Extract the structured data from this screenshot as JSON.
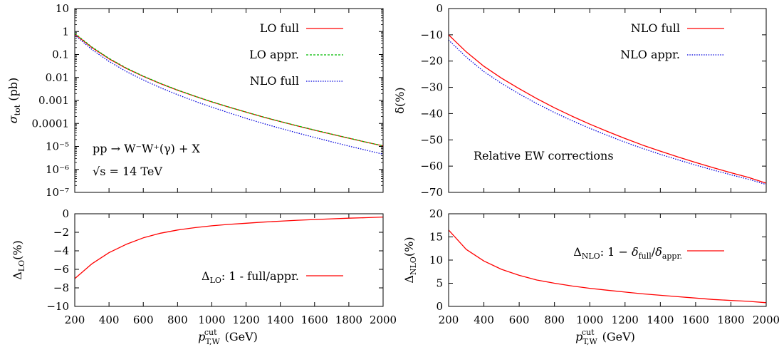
{
  "chart_data": [
    {
      "type": "line",
      "panel": "top-left",
      "y_scale": "log",
      "ylabel": "σ_tot (pb)",
      "xlim": [
        200,
        2000
      ],
      "ylim": [
        1e-07,
        10
      ],
      "grid": false,
      "legend_position": "top-right",
      "y_tick_labels": [
        "10",
        "1",
        "0.1",
        "0.01",
        "0.001",
        "0.0001",
        "10⁻⁵",
        "10⁻⁶",
        "10⁻⁷"
      ],
      "y_tick_values": [
        10,
        1,
        0.1,
        0.01,
        0.001,
        0.0001,
        1e-05,
        1e-06,
        1e-07
      ],
      "annotations": [
        "pp → W⁻W⁺(γ) + X",
        "√s = 14 TeV"
      ],
      "x": [
        200,
        300,
        400,
        500,
        600,
        700,
        800,
        900,
        1000,
        1100,
        1200,
        1300,
        1400,
        1500,
        1600,
        1700,
        1800,
        1900,
        2000
      ],
      "series": [
        {
          "name": "LO full",
          "color": "#ff0000",
          "style": "solid",
          "values": [
            0.78,
            0.2,
            0.065,
            0.025,
            0.0112,
            0.0054,
            0.0028,
            0.00153,
            0.00087,
            0.00051,
            0.00031,
            0.00019,
            0.000121,
            7.8e-05,
            5.1e-05,
            3.4e-05,
            2.28e-05,
            1.54e-05,
            1.05e-05
          ]
        },
        {
          "name": "LO appr.",
          "color": "#00bb00",
          "style": "dashed",
          "values": [
            0.84,
            0.211,
            0.068,
            0.0259,
            0.0115,
            0.00555,
            0.00286,
            0.00156,
            0.00088,
            0.00052,
            0.000313,
            0.000192,
            0.000122,
            7.9e-05,
            5.15e-05,
            3.43e-05,
            2.3e-05,
            1.55e-05,
            1.06e-05
          ]
        },
        {
          "name": "NLO full",
          "color": "#0000dd",
          "style": "dotted",
          "values": [
            0.7,
            0.165,
            0.05,
            0.0183,
            0.0078,
            0.0036,
            0.00178,
            0.00093,
            0.00051,
            0.00029,
            0.000167,
            0.0001,
            6.15e-05,
            3.85e-05,
            2.45e-05,
            1.59e-05,
            1.04e-05,
            6.9e-06,
            4.6e-06
          ]
        }
      ]
    },
    {
      "type": "line",
      "panel": "top-right",
      "ylabel": "δ(%)",
      "xlim": [
        200,
        2000
      ],
      "ylim": [
        -70,
        0
      ],
      "grid": false,
      "legend_position": "top-right",
      "y_tick_labels": [
        "0",
        "−10",
        "−20",
        "−30",
        "−40",
        "−50",
        "−60",
        "−70"
      ],
      "y_tick_values": [
        0,
        -10,
        -20,
        -30,
        -40,
        -50,
        -60,
        -70
      ],
      "annotations": [
        "Relative EW corrections"
      ],
      "x": [
        200,
        300,
        400,
        500,
        600,
        700,
        800,
        900,
        1000,
        1100,
        1200,
        1300,
        1400,
        1500,
        1600,
        1700,
        1800,
        1900,
        2000
      ],
      "series": [
        {
          "name": "NLO full",
          "color": "#ff0000",
          "style": "solid",
          "values": [
            -10.0,
            -16.5,
            -22.0,
            -26.5,
            -30.5,
            -34.3,
            -37.8,
            -41.0,
            -44.0,
            -46.8,
            -49.5,
            -52.0,
            -54.3,
            -56.5,
            -58.6,
            -60.6,
            -62.5,
            -64.3,
            -66.5
          ]
        },
        {
          "name": "NLO appr.",
          "color": "#0000dd",
          "style": "dotted",
          "values": [
            -12.0,
            -18.5,
            -24.0,
            -28.5,
            -32.5,
            -36.2,
            -39.6,
            -42.7,
            -45.6,
            -48.3,
            -50.9,
            -53.3,
            -55.5,
            -57.6,
            -59.6,
            -61.5,
            -63.3,
            -65.0,
            -67.0
          ]
        }
      ]
    },
    {
      "type": "line",
      "panel": "bottom-left",
      "ylabel": "Δ_LO(%)",
      "xlabel": "p_T,W^cut (GeV)",
      "xlim": [
        200,
        2000
      ],
      "ylim": [
        -10,
        0
      ],
      "grid": false,
      "legend_position": "bottom-right",
      "x_tick_labels": [
        "200",
        "400",
        "600",
        "800",
        "1000",
        "1200",
        "1400",
        "1600",
        "1800",
        "2000"
      ],
      "y_tick_labels": [
        "0",
        "−2",
        "−4",
        "−6",
        "−8",
        "−10"
      ],
      "y_tick_values": [
        0,
        -2,
        -4,
        -6,
        -8,
        -10
      ],
      "x": [
        200,
        300,
        400,
        500,
        600,
        700,
        800,
        900,
        1000,
        1100,
        1200,
        1300,
        1400,
        1500,
        1600,
        1700,
        1800,
        1900,
        2000
      ],
      "series": [
        {
          "name": "Δ_LO: 1 - full/appr.",
          "color": "#ff0000",
          "style": "solid",
          "values": [
            -7.0,
            -5.4,
            -4.2,
            -3.3,
            -2.6,
            -2.1,
            -1.75,
            -1.5,
            -1.3,
            -1.15,
            -1.02,
            -0.9,
            -0.8,
            -0.7,
            -0.62,
            -0.55,
            -0.48,
            -0.42,
            -0.35
          ]
        }
      ]
    },
    {
      "type": "line",
      "panel": "bottom-right",
      "ylabel": "Δ_NLO(%)",
      "xlabel": "p_T,W^cut (GeV)",
      "xlim": [
        200,
        2000
      ],
      "ylim": [
        0,
        20
      ],
      "grid": false,
      "legend_position": "top-right",
      "x_tick_labels": [
        "200",
        "400",
        "600",
        "800",
        "1000",
        "1200",
        "1400",
        "1600",
        "1800",
        "2000"
      ],
      "y_tick_labels": [
        "20",
        "15",
        "10",
        "5",
        "0"
      ],
      "y_tick_values": [
        20,
        15,
        10,
        5,
        0
      ],
      "x": [
        200,
        300,
        400,
        500,
        600,
        700,
        800,
        900,
        1000,
        1100,
        1200,
        1300,
        1400,
        1500,
        1600,
        1700,
        1800,
        1900,
        2000
      ],
      "series": [
        {
          "name": "Δ_NLO: 1 − δ_full/δ_appr.",
          "color": "#ff0000",
          "style": "solid",
          "values": [
            16.5,
            12.3,
            9.8,
            8.0,
            6.7,
            5.7,
            5.0,
            4.4,
            3.9,
            3.5,
            3.1,
            2.7,
            2.4,
            2.1,
            1.8,
            1.5,
            1.3,
            1.1,
            0.8
          ]
        }
      ]
    }
  ]
}
